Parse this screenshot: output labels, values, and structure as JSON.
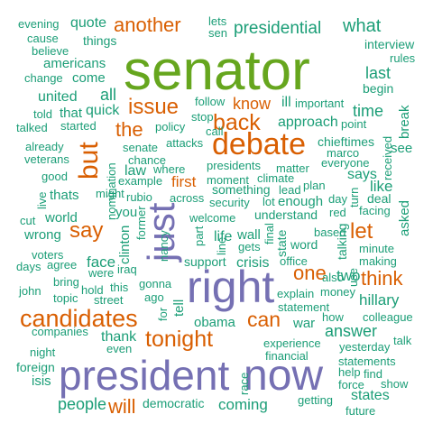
{
  "words": [
    {
      "id": "senator",
      "text": "senator",
      "color": "#66a61e"
    },
    {
      "id": "president",
      "text": "president",
      "color": "#7570b3"
    },
    {
      "id": "now",
      "text": "now",
      "color": "#7570b3"
    },
    {
      "id": "right",
      "text": "right",
      "color": "#7570b3"
    },
    {
      "id": "just",
      "text": "just",
      "color": "#7570b3"
    },
    {
      "id": "debate",
      "text": "debate",
      "color": "#d95f02"
    },
    {
      "id": "candidates",
      "text": "candidates",
      "color": "#d95f02"
    },
    {
      "id": "but",
      "text": "but",
      "color": "#d95f02"
    },
    {
      "id": "tonight",
      "text": "tonight",
      "color": "#d95f02"
    },
    {
      "id": "issue",
      "text": "issue",
      "color": "#d95f02"
    },
    {
      "id": "another",
      "text": "another",
      "color": "#d95f02"
    },
    {
      "id": "back",
      "text": "back",
      "color": "#d95f02"
    },
    {
      "id": "can",
      "text": "can",
      "color": "#d95f02"
    },
    {
      "id": "say",
      "text": "say",
      "color": "#d95f02"
    },
    {
      "id": "think",
      "text": "think",
      "color": "#d95f02"
    },
    {
      "id": "let",
      "text": "let",
      "color": "#d95f02"
    },
    {
      "id": "the",
      "text": "the",
      "color": "#d95f02"
    },
    {
      "id": "will",
      "text": "will",
      "color": "#d95f02"
    },
    {
      "id": "one",
      "text": "one",
      "color": "#d95f02"
    },
    {
      "id": "know",
      "text": "know",
      "color": "#d95f02"
    },
    {
      "id": "first",
      "text": "first",
      "color": "#d95f02"
    },
    {
      "id": "presidential",
      "text": "presidential",
      "color": "#1b9e77"
    },
    {
      "id": "what",
      "text": "what",
      "color": "#1b9e77"
    },
    {
      "id": "evening",
      "text": "evening",
      "color": "#1b9e77"
    },
    {
      "id": "quote",
      "text": "quote",
      "color": "#1b9e77"
    },
    {
      "id": "lets",
      "text": "lets",
      "color": "#1b9e77"
    },
    {
      "id": "sen",
      "text": "sen",
      "color": "#1b9e77"
    },
    {
      "id": "cause",
      "text": "cause",
      "color": "#1b9e77"
    },
    {
      "id": "things",
      "text": "things",
      "color": "#1b9e77"
    },
    {
      "id": "interview",
      "text": "interview",
      "color": "#1b9e77"
    },
    {
      "id": "believe",
      "text": "believe",
      "color": "#1b9e77"
    },
    {
      "id": "rules",
      "text": "rules",
      "color": "#1b9e77"
    },
    {
      "id": "americans",
      "text": "americans",
      "color": "#1b9e77"
    },
    {
      "id": "last",
      "text": "last",
      "color": "#1b9e77"
    },
    {
      "id": "change",
      "text": "change",
      "color": "#1b9e77"
    },
    {
      "id": "come",
      "text": "come",
      "color": "#1b9e77"
    },
    {
      "id": "begin",
      "text": "begin",
      "color": "#1b9e77"
    },
    {
      "id": "united",
      "text": "united",
      "color": "#1b9e77"
    },
    {
      "id": "all",
      "text": "all",
      "color": "#1b9e77"
    },
    {
      "id": "follow",
      "text": "follow",
      "color": "#1b9e77"
    },
    {
      "id": "ill",
      "text": "ill",
      "color": "#1b9e77"
    },
    {
      "id": "important",
      "text": "important",
      "color": "#1b9e77"
    },
    {
      "id": "told",
      "text": "told",
      "color": "#1b9e77"
    },
    {
      "id": "that",
      "text": "that",
      "color": "#1b9e77"
    },
    {
      "id": "quick",
      "text": "quick",
      "color": "#1b9e77"
    },
    {
      "id": "stop",
      "text": "stop",
      "color": "#1b9e77"
    },
    {
      "id": "approach",
      "text": "approach",
      "color": "#1b9e77"
    },
    {
      "id": "point",
      "text": "point",
      "color": "#1b9e77"
    },
    {
      "id": "time",
      "text": "time",
      "color": "#1b9e77"
    },
    {
      "id": "break",
      "text": "break",
      "color": "#1b9e77"
    },
    {
      "id": "talked",
      "text": "talked",
      "color": "#1b9e77"
    },
    {
      "id": "started",
      "text": "started",
      "color": "#1b9e77"
    },
    {
      "id": "policy",
      "text": "policy",
      "color": "#1b9e77"
    },
    {
      "id": "call",
      "text": "call",
      "color": "#1b9e77"
    },
    {
      "id": "chieftimes",
      "text": "chieftimes",
      "color": "#1b9e77"
    },
    {
      "id": "already",
      "text": "already",
      "color": "#1b9e77"
    },
    {
      "id": "senate",
      "text": "senate",
      "color": "#1b9e77"
    },
    {
      "id": "attacks",
      "text": "attacks",
      "color": "#1b9e77"
    },
    {
      "id": "marco",
      "text": "marco",
      "color": "#1b9e77"
    },
    {
      "id": "see",
      "text": "see",
      "color": "#1b9e77"
    },
    {
      "id": "veterans",
      "text": "veterans",
      "color": "#1b9e77"
    },
    {
      "id": "chance",
      "text": "chance",
      "color": "#1b9e77"
    },
    {
      "id": "everyone",
      "text": "everyone",
      "color": "#1b9e77"
    },
    {
      "id": "matter",
      "text": "matter",
      "color": "#1b9e77"
    },
    {
      "id": "good",
      "text": "good",
      "color": "#1b9e77"
    },
    {
      "id": "law",
      "text": "law",
      "color": "#1b9e77"
    },
    {
      "id": "where",
      "text": "where",
      "color": "#1b9e77"
    },
    {
      "id": "presidents",
      "text": "presidents",
      "color": "#1b9e77"
    },
    {
      "id": "example",
      "text": "example",
      "color": "#1b9e77"
    },
    {
      "id": "moment",
      "text": "moment",
      "color": "#1b9e77"
    },
    {
      "id": "climate",
      "text": "climate",
      "color": "#1b9e77"
    },
    {
      "id": "plan",
      "text": "plan",
      "color": "#1b9e77"
    },
    {
      "id": "says",
      "text": "says",
      "color": "#1b9e77"
    },
    {
      "id": "like",
      "text": "like",
      "color": "#1b9e77"
    },
    {
      "id": "live",
      "text": "live",
      "color": "#1b9e77"
    },
    {
      "id": "thats",
      "text": "thats",
      "color": "#1b9e77"
    },
    {
      "id": "might",
      "text": "might",
      "color": "#1b9e77"
    },
    {
      "id": "rubio",
      "text": "rubio",
      "color": "#1b9e77"
    },
    {
      "id": "across",
      "text": "across",
      "color": "#1b9e77"
    },
    {
      "id": "security",
      "text": "security",
      "color": "#1b9e77"
    },
    {
      "id": "something",
      "text": "something",
      "color": "#1b9e77"
    },
    {
      "id": "lead",
      "text": "lead",
      "color": "#1b9e77"
    },
    {
      "id": "day",
      "text": "day",
      "color": "#1b9e77"
    },
    {
      "id": "deal",
      "text": "deal",
      "color": "#1b9e77"
    },
    {
      "id": "facing",
      "text": "facing",
      "color": "#1b9e77"
    },
    {
      "id": "lot",
      "text": "lot",
      "color": "#1b9e77"
    },
    {
      "id": "enough",
      "text": "enough",
      "color": "#1b9e77"
    },
    {
      "id": "red",
      "text": "red",
      "color": "#1b9e77"
    },
    {
      "id": "cut",
      "text": "cut",
      "color": "#1b9e77"
    },
    {
      "id": "world",
      "text": "world",
      "color": "#1b9e77"
    },
    {
      "id": "you",
      "text": "you",
      "color": "#1b9e77"
    },
    {
      "id": "welcome",
      "text": "welcome",
      "color": "#1b9e77"
    },
    {
      "id": "understand",
      "text": "understand",
      "color": "#1b9e77"
    },
    {
      "id": "wrong",
      "text": "wrong",
      "color": "#1b9e77"
    },
    {
      "id": "based",
      "text": "based",
      "color": "#1b9e77"
    },
    {
      "id": "voters",
      "text": "voters",
      "color": "#1b9e77"
    },
    {
      "id": "life",
      "text": "life",
      "color": "#1b9e77"
    },
    {
      "id": "wall",
      "text": "wall",
      "color": "#1b9e77"
    },
    {
      "id": "word",
      "text": "word",
      "color": "#1b9e77"
    },
    {
      "id": "minute",
      "text": "minute",
      "color": "#1b9e77"
    },
    {
      "id": "agree",
      "text": "agree",
      "color": "#1b9e77"
    },
    {
      "id": "face",
      "text": "face",
      "color": "#1b9e77"
    },
    {
      "id": "gets",
      "text": "gets",
      "color": "#1b9e77"
    },
    {
      "id": "making",
      "text": "making",
      "color": "#1b9e77"
    },
    {
      "id": "days",
      "text": "days",
      "color": "#1b9e77"
    },
    {
      "id": "were",
      "text": "were",
      "color": "#1b9e77"
    },
    {
      "id": "iraq",
      "text": "iraq",
      "color": "#1b9e77"
    },
    {
      "id": "support",
      "text": "support",
      "color": "#1b9e77"
    },
    {
      "id": "crisis",
      "text": "crisis",
      "color": "#1b9e77"
    },
    {
      "id": "office",
      "text": "office",
      "color": "#1b9e77"
    },
    {
      "id": "also",
      "text": "also",
      "color": "#1b9e77"
    },
    {
      "id": "two",
      "text": "two",
      "color": "#1b9e77"
    },
    {
      "id": "bring",
      "text": "bring",
      "color": "#1b9e77"
    },
    {
      "id": "john",
      "text": "john",
      "color": "#1b9e77"
    },
    {
      "id": "hold",
      "text": "hold",
      "color": "#1b9e77"
    },
    {
      "id": "this",
      "text": "this",
      "color": "#1b9e77"
    },
    {
      "id": "gonna",
      "text": "gonna",
      "color": "#1b9e77"
    },
    {
      "id": "explain",
      "text": "explain",
      "color": "#1b9e77"
    },
    {
      "id": "money",
      "text": "money",
      "color": "#1b9e77"
    },
    {
      "id": "topic",
      "text": "topic",
      "color": "#1b9e77"
    },
    {
      "id": "street",
      "text": "street",
      "color": "#1b9e77"
    },
    {
      "id": "ago",
      "text": "ago",
      "color": "#1b9e77"
    },
    {
      "id": "hillary",
      "text": "hillary",
      "color": "#1b9e77"
    },
    {
      "id": "statement",
      "text": "statement",
      "color": "#1b9e77"
    },
    {
      "id": "how",
      "text": "how",
      "color": "#1b9e77"
    },
    {
      "id": "colleague",
      "text": "colleague",
      "color": "#1b9e77"
    },
    {
      "id": "obama",
      "text": "obama",
      "color": "#1b9e77"
    },
    {
      "id": "war",
      "text": "war",
      "color": "#1b9e77"
    },
    {
      "id": "answer",
      "text": "answer",
      "color": "#1b9e77"
    },
    {
      "id": "companies",
      "text": "companies",
      "color": "#1b9e77"
    },
    {
      "id": "thank",
      "text": "thank",
      "color": "#1b9e77"
    },
    {
      "id": "night",
      "text": "night",
      "color": "#1b9e77"
    },
    {
      "id": "even",
      "text": "even",
      "color": "#1b9e77"
    },
    {
      "id": "experience",
      "text": "experience",
      "color": "#1b9e77"
    },
    {
      "id": "yesterday",
      "text": "yesterday",
      "color": "#1b9e77"
    },
    {
      "id": "talk",
      "text": "talk",
      "color": "#1b9e77"
    },
    {
      "id": "foreign",
      "text": "foreign",
      "color": "#1b9e77"
    },
    {
      "id": "financial",
      "text": "financial",
      "color": "#1b9e77"
    },
    {
      "id": "statements",
      "text": "statements",
      "color": "#1b9e77"
    },
    {
      "id": "isis",
      "text": "isis",
      "color": "#1b9e77"
    },
    {
      "id": "help",
      "text": "help",
      "color": "#1b9e77"
    },
    {
      "id": "find",
      "text": "find",
      "color": "#1b9e77"
    },
    {
      "id": "force",
      "text": "force",
      "color": "#1b9e77"
    },
    {
      "id": "show",
      "text": "show",
      "color": "#1b9e77"
    },
    {
      "id": "people",
      "text": "people",
      "color": "#1b9e77"
    },
    {
      "id": "democratic",
      "text": "democratic",
      "color": "#1b9e77"
    },
    {
      "id": "coming",
      "text": "coming",
      "color": "#1b9e77"
    },
    {
      "id": "getting",
      "text": "getting",
      "color": "#1b9e77"
    },
    {
      "id": "states",
      "text": "states",
      "color": "#1b9e77"
    },
    {
      "id": "future",
      "text": "future",
      "color": "#1b9e77"
    },
    {
      "id": "nomination",
      "text": "nomination",
      "color": "#1b9e77"
    },
    {
      "id": "clinton",
      "text": "clinton",
      "color": "#1b9e77"
    },
    {
      "id": "former",
      "text": "former",
      "color": "#1b9e77"
    },
    {
      "id": "nancy",
      "text": "nancy",
      "color": "#1b9e77"
    },
    {
      "id": "line",
      "text": "line",
      "color": "#1b9e77"
    },
    {
      "id": "tell",
      "text": "tell",
      "color": "#1b9e77"
    },
    {
      "id": "for",
      "text": "for",
      "color": "#1b9e77"
    },
    {
      "id": "final",
      "text": "final",
      "color": "#1b9e77"
    },
    {
      "id": "state",
      "text": "state",
      "color": "#1b9e77"
    },
    {
      "id": "talking",
      "text": "talking",
      "color": "#1b9e77"
    },
    {
      "id": "received",
      "text": "received",
      "color": "#1b9e77"
    },
    {
      "id": "asked",
      "text": "asked",
      "color": "#1b9e77"
    },
    {
      "id": "race",
      "text": "race",
      "color": "#1b9e77"
    },
    {
      "id": "use",
      "text": "use",
      "color": "#1b9e77"
    },
    {
      "id": "turn",
      "text": "turn",
      "color": "#1b9e77"
    },
    {
      "id": "part",
      "text": "part",
      "color": "#1b9e77"
    }
  ]
}
